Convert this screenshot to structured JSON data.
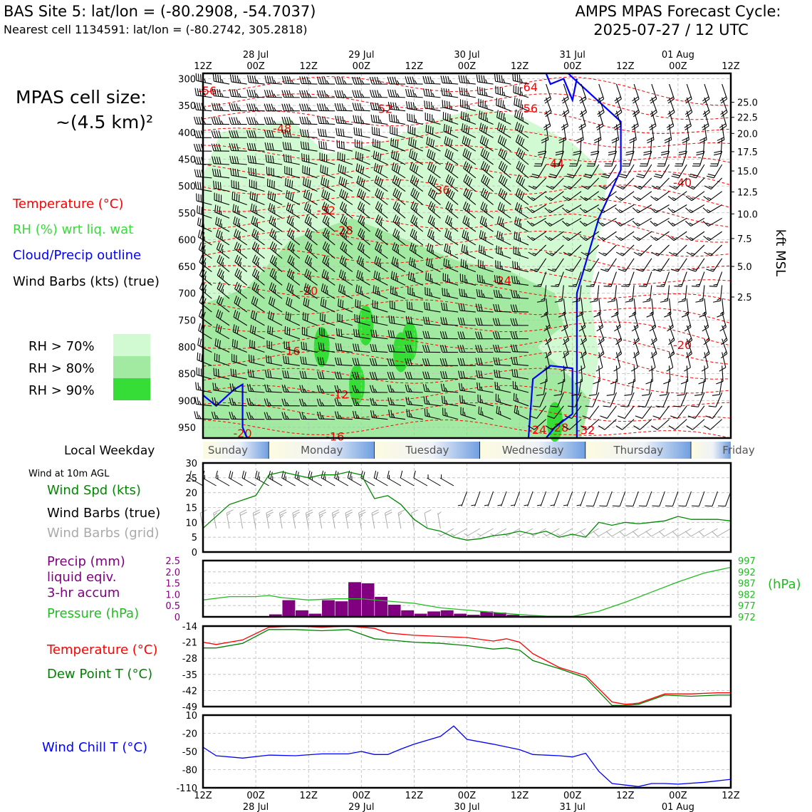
{
  "header": {
    "site_line": "BAS Site 5: lat/lon = (-80.2908, -54.7037)",
    "cell_line": "Nearest cell 1134591: lat/lon = (-80.2742, 305.2818)",
    "forecast_line1": "AMPS MPAS Forecast Cycle:",
    "forecast_line2": "2025-07-27 / 12 UTC"
  },
  "left_panel": {
    "cell_size_line1": "MPAS cell size:",
    "cell_size_line2": "~(4.5 km)²",
    "legend_temperature": "Temperature (°C)",
    "legend_rh": "RH (%) wrt liq. wat",
    "legend_cloud": "Cloud/Precip outline",
    "legend_wind": "Wind Barbs (kts) (true)",
    "rh_levels": [
      {
        "label": "RH > 70%",
        "color": "#d2fad2"
      },
      {
        "label": "RH > 80%",
        "color": "#a2eaa2"
      },
      {
        "label": "RH > 90%",
        "color": "#36dd36"
      }
    ],
    "weekday_label": "Local Weekday",
    "wind_10m_label": "Wind at 10m AGL",
    "wind_spd_label": "Wind Spd (kts)",
    "wind_true_label": "Wind Barbs (true)",
    "wind_grid_label": "Wind Barbs (grid)",
    "precip_line1": "Precip (mm)",
    "precip_line2": "liquid eqiv.",
    "precip_line3": "3-hr accum",
    "pressure_label": "Pressure (hPa)",
    "temp_label": "Temperature (°C)",
    "dew_label": "Dew Point T (°C)",
    "chill_label": "Wind Chill T (°C)"
  },
  "colors": {
    "temperature": "#ff0000",
    "rh_text": "#33dd33",
    "cloud": "#0000ff",
    "wind_speed": "#008800",
    "pressure": "#22bb22",
    "precip": "#800080",
    "dew_point": "#008000",
    "wind_chill": "#0000ff",
    "grid_barbs": "#aaaaaa"
  },
  "chart_data": [
    {
      "type": "heatmap",
      "name": "cross-section",
      "top_ticks": [
        {
          "hour": 0,
          "label1": "",
          "label2": "12Z"
        },
        {
          "hour": 12,
          "label1": "28 Jul",
          "label2": "00Z"
        },
        {
          "hour": 24,
          "label1": "",
          "label2": "12Z"
        },
        {
          "hour": 36,
          "label1": "29 Jul",
          "label2": "00Z"
        },
        {
          "hour": 48,
          "label1": "",
          "label2": "12Z"
        },
        {
          "hour": 60,
          "label1": "30 Jul",
          "label2": "00Z"
        },
        {
          "hour": 72,
          "label1": "",
          "label2": "12Z"
        },
        {
          "hour": 84,
          "label1": "31 Jul",
          "label2": "00Z"
        },
        {
          "hour": 96,
          "label1": "",
          "label2": "12Z"
        },
        {
          "hour": 108,
          "label1": "01 Aug",
          "label2": "00Z"
        },
        {
          "hour": 120,
          "label1": "",
          "label2": "12Z"
        }
      ],
      "pressure_ticks": [
        300,
        350,
        400,
        450,
        500,
        550,
        600,
        650,
        700,
        750,
        800,
        850,
        900,
        950
      ],
      "ylim_hpa": [
        970,
        290
      ],
      "kft_ticks": [
        {
          "p": 344,
          "label": "25.0"
        },
        {
          "p": 372,
          "label": "22.5"
        },
        {
          "p": 402,
          "label": "20.0"
        },
        {
          "p": 436,
          "label": "17.5"
        },
        {
          "p": 472,
          "label": "15.0"
        },
        {
          "p": 511,
          "label": "12.5"
        },
        {
          "p": 552,
          "label": "10.0"
        },
        {
          "p": 598,
          "label": "7.5"
        },
        {
          "p": 650,
          "label": "5.0"
        },
        {
          "p": 707,
          "label": "2.5"
        }
      ],
      "kft_axis_label": "kft MSL",
      "temp_labels": [
        {
          "hour": 1,
          "p": 322,
          "text": "-56"
        },
        {
          "hour": 74,
          "p": 315,
          "text": "-64"
        },
        {
          "hour": 41,
          "p": 356,
          "text": "-52"
        },
        {
          "hour": 74,
          "p": 355,
          "text": "-56"
        },
        {
          "hour": 18,
          "p": 392,
          "text": "-48"
        },
        {
          "hour": 80,
          "p": 458,
          "text": "-44"
        },
        {
          "hour": 109,
          "p": 493,
          "text": "-40"
        },
        {
          "hour": 54,
          "p": 507,
          "text": "-36"
        },
        {
          "hour": 28,
          "p": 545,
          "text": "-32"
        },
        {
          "hour": 32,
          "p": 582,
          "text": "-28"
        },
        {
          "hour": 68,
          "p": 676,
          "text": "-24"
        },
        {
          "hour": 24,
          "p": 695,
          "text": "-20"
        },
        {
          "hour": 109,
          "p": 796,
          "text": "-20"
        },
        {
          "hour": 20,
          "p": 807,
          "text": "-16"
        },
        {
          "hour": 31,
          "p": 888,
          "text": "-12"
        },
        {
          "hour": 30,
          "p": 967,
          "text": "-16"
        },
        {
          "hour": 9,
          "p": 961,
          "text": "-20"
        },
        {
          "hour": 76,
          "p": 954,
          "text": "-24"
        },
        {
          "hour": 81,
          "p": 950,
          "text": "-28"
        },
        {
          "hour": 87,
          "p": 955,
          "text": "-32"
        }
      ],
      "weekdays": [
        "Sunday",
        "Monday",
        "Tuesday",
        "Wednesday",
        "Thursday",
        "Friday"
      ]
    },
    {
      "type": "line",
      "name": "wind-speed",
      "x_hours": [
        0,
        6,
        12,
        15,
        18,
        21,
        24,
        27,
        30,
        33,
        36,
        39,
        42,
        45,
        48,
        51,
        54,
        57,
        60,
        63,
        66,
        69,
        72,
        75,
        78,
        81,
        84,
        87,
        90,
        93,
        96,
        99,
        102,
        105,
        108,
        111,
        114,
        117,
        120
      ],
      "series": [
        {
          "name": "Wind Spd (kts)",
          "values": [
            8,
            16,
            19,
            26,
            27,
            26,
            25,
            26,
            26,
            27,
            26,
            18,
            19,
            16,
            11,
            8,
            7,
            5,
            4,
            4.5,
            5.5,
            6,
            7,
            6,
            7,
            5,
            6,
            5,
            10,
            9,
            10,
            9.5,
            10,
            10.5,
            12,
            11,
            11,
            11,
            10.5
          ]
        }
      ],
      "yticks": [
        0,
        5,
        10,
        15,
        20,
        25,
        30
      ],
      "ylim": [
        0,
        30
      ]
    },
    {
      "type": "bar",
      "name": "precip-pressure",
      "precip_bins": [
        {
          "start": 15,
          "end": 18,
          "value": 0.12
        },
        {
          "start": 18,
          "end": 21,
          "value": 0.75
        },
        {
          "start": 21,
          "end": 24,
          "value": 0.3
        },
        {
          "start": 24,
          "end": 27,
          "value": 0.15
        },
        {
          "start": 27,
          "end": 30,
          "value": 0.75
        },
        {
          "start": 30,
          "end": 33,
          "value": 0.7
        },
        {
          "start": 33,
          "end": 36,
          "value": 1.55
        },
        {
          "start": 36,
          "end": 39,
          "value": 1.5
        },
        {
          "start": 39,
          "end": 42,
          "value": 0.9
        },
        {
          "start": 42,
          "end": 45,
          "value": 0.55
        },
        {
          "start": 45,
          "end": 48,
          "value": 0.3
        },
        {
          "start": 48,
          "end": 51,
          "value": 0.15
        },
        {
          "start": 51,
          "end": 54,
          "value": 0.25
        },
        {
          "start": 54,
          "end": 57,
          "value": 0.3
        },
        {
          "start": 57,
          "end": 60,
          "value": 0.15
        },
        {
          "start": 60,
          "end": 63,
          "value": 0.1
        },
        {
          "start": 63,
          "end": 66,
          "value": 0.25
        },
        {
          "start": 66,
          "end": 69,
          "value": 0.2
        },
        {
          "start": 69,
          "end": 72,
          "value": 0.1
        }
      ],
      "precip_yticks": [
        "0",
        "0.5",
        "1.0",
        "1.5",
        "2.0",
        "2.5"
      ],
      "precip_ylim": [
        0,
        2.5
      ],
      "pressure_x_hours": [
        0,
        6,
        12,
        15,
        18,
        24,
        30,
        36,
        42,
        48,
        54,
        60,
        66,
        72,
        78,
        84,
        90,
        96,
        102,
        108,
        114,
        120
      ],
      "pressure_values": [
        979.5,
        981,
        981,
        981.5,
        980.5,
        979.5,
        980,
        980,
        979,
        978,
        976,
        975,
        974,
        973,
        972.3,
        972.2,
        974.5,
        978.5,
        983,
        987.5,
        991.5,
        994
      ],
      "pressure_ticks": [
        "997",
        "992",
        "987",
        "982",
        "977",
        "972"
      ],
      "pressure_ylim": [
        972,
        997
      ],
      "pressure_axis_label": "(hPa)"
    },
    {
      "type": "line",
      "name": "temperature-dewpoint",
      "x_hours": [
        0,
        3,
        9,
        15,
        21,
        27,
        33,
        39,
        42,
        48,
        54,
        60,
        66,
        69,
        72,
        75,
        81,
        87,
        93,
        96,
        99,
        105,
        111,
        117,
        120
      ],
      "series": [
        {
          "name": "Temperature (°C)",
          "values": [
            -21,
            -22,
            -20,
            -14.5,
            -14,
            -14.5,
            -14,
            -15,
            -17,
            -18,
            -18.5,
            -19,
            -20.5,
            -19.5,
            -21,
            -26,
            -32,
            -35.5,
            -47,
            -48,
            -47.5,
            -43.5,
            -43.5,
            -43,
            -43
          ]
        },
        {
          "name": "Dew Point T (°C)",
          "values": [
            -23.5,
            -23.5,
            -21.5,
            -15.5,
            -15.5,
            -16,
            -15.5,
            -19.5,
            -20,
            -21,
            -21.5,
            -22.5,
            -24,
            -23.5,
            -24.5,
            -29,
            -32.5,
            -36.5,
            -48.5,
            -48.5,
            -48,
            -44,
            -44.5,
            -44,
            -44
          ]
        }
      ],
      "yticks": [
        -14,
        -21,
        -28,
        -35,
        -42,
        -49
      ],
      "ylim": [
        -49,
        -14
      ]
    },
    {
      "type": "line",
      "name": "wind-chill",
      "x_hours": [
        0,
        3,
        9,
        15,
        21,
        27,
        33,
        36,
        39,
        42,
        45,
        48,
        54,
        57,
        60,
        66,
        72,
        75,
        81,
        84,
        87,
        90,
        93,
        99,
        102,
        105,
        108,
        114,
        120
      ],
      "series": [
        {
          "name": "Wind Chill T (°C)",
          "values": [
            -43,
            -57,
            -61,
            -56,
            -57,
            -54,
            -54,
            -50,
            -55,
            -55,
            -46,
            -38,
            -25,
            -8,
            -30,
            -38,
            -47,
            -55,
            -57,
            -59,
            -53,
            -83,
            -103,
            -108,
            -103,
            -103,
            -104,
            -101,
            -96
          ]
        }
      ],
      "yticks": [
        10,
        -20,
        -50,
        -80,
        -110
      ],
      "ylim": [
        -110,
        10
      ],
      "bottom_ticks": [
        {
          "hour": 0,
          "label1": "12Z",
          "label2": ""
        },
        {
          "hour": 12,
          "label1": "00Z",
          "label2": "28 Jul"
        },
        {
          "hour": 24,
          "label1": "12Z",
          "label2": ""
        },
        {
          "hour": 36,
          "label1": "00Z",
          "label2": "29 Jul"
        },
        {
          "hour": 48,
          "label1": "12Z",
          "label2": ""
        },
        {
          "hour": 60,
          "label1": "00Z",
          "label2": "30 Jul"
        },
        {
          "hour": 72,
          "label1": "12Z",
          "label2": ""
        },
        {
          "hour": 84,
          "label1": "00Z",
          "label2": "31 Jul"
        },
        {
          "hour": 96,
          "label1": "12Z",
          "label2": ""
        },
        {
          "hour": 108,
          "label1": "00Z",
          "label2": "01 Aug"
        },
        {
          "hour": 120,
          "label1": "12Z",
          "label2": ""
        }
      ]
    }
  ]
}
